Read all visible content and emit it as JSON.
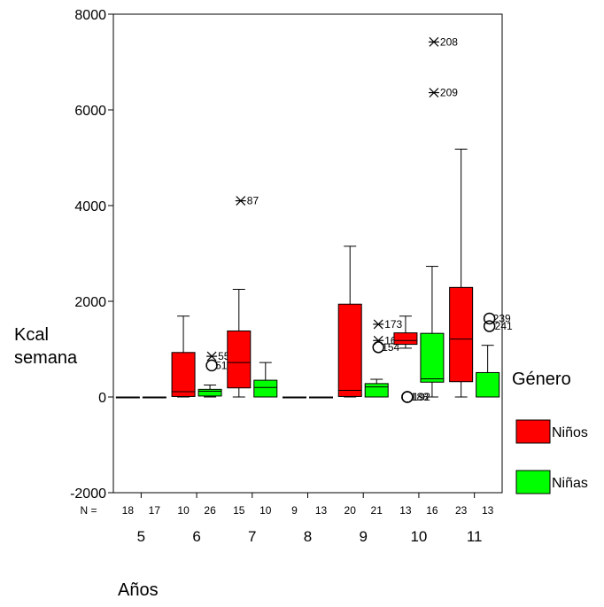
{
  "chart_data": {
    "type": "boxplot",
    "xlabel": "Años",
    "ylabel_lines": [
      "Kcal",
      "semana"
    ],
    "ylim": [
      -2000,
      8000
    ],
    "yticks": [
      -2000,
      0,
      2000,
      4000,
      6000,
      8000
    ],
    "n_prefix": "N =",
    "legend": {
      "title": "Género",
      "placement": "right",
      "entries": [
        {
          "name": "Niños",
          "color": "#ff0000"
        },
        {
          "name": "Niñas",
          "color": "#00ff00"
        }
      ]
    },
    "categories": [
      "5",
      "6",
      "7",
      "8",
      "9",
      "10",
      "11"
    ],
    "groups": [
      {
        "age": "5",
        "boxes": [
          {
            "series": "Niños",
            "n": 18,
            "min": 0,
            "q1": 0,
            "median": 0,
            "q3": 0,
            "max": 0,
            "outliers": [],
            "extremes": []
          },
          {
            "series": "Niñas",
            "n": 17,
            "min": 0,
            "q1": 0,
            "median": 0,
            "q3": 0,
            "max": 0,
            "outliers": [],
            "extremes": []
          }
        ]
      },
      {
        "age": "6",
        "boxes": [
          {
            "series": "Niños",
            "n": 10,
            "min": 0,
            "q1": 10,
            "median": 110,
            "q3": 930,
            "max": 1690,
            "outliers": [],
            "extremes": []
          },
          {
            "series": "Niñas",
            "n": 26,
            "min": 0,
            "q1": 20,
            "median": 120,
            "q3": 160,
            "max": 250,
            "outliers": [
              {
                "label": "51",
                "value": 660
              }
            ],
            "extremes": [
              {
                "label": "55",
                "value": 850
              }
            ]
          }
        ]
      },
      {
        "age": "7",
        "boxes": [
          {
            "series": "Niños",
            "n": 15,
            "min": 0,
            "q1": 190,
            "median": 720,
            "q3": 1380,
            "max": 2250,
            "outliers": [],
            "extremes": [
              {
                "label": "87",
                "value": 4100
              }
            ]
          },
          {
            "series": "Niñas",
            "n": 10,
            "min": 0,
            "q1": 0,
            "median": 200,
            "q3": 350,
            "max": 720,
            "outliers": [],
            "extremes": []
          }
        ]
      },
      {
        "age": "8",
        "boxes": [
          {
            "series": "Niños",
            "n": 9,
            "min": 0,
            "q1": 0,
            "median": 0,
            "q3": 0,
            "max": 0,
            "outliers": [],
            "extremes": []
          },
          {
            "series": "Niñas",
            "n": 13,
            "min": 0,
            "q1": 0,
            "median": 0,
            "q3": 0,
            "max": 0,
            "outliers": [],
            "extremes": []
          }
        ]
      },
      {
        "age": "9",
        "boxes": [
          {
            "series": "Niños",
            "n": 20,
            "min": 0,
            "q1": 10,
            "median": 140,
            "q3": 1940,
            "max": 3150,
            "outliers": [],
            "extremes": []
          },
          {
            "series": "Niñas",
            "n": 21,
            "min": 0,
            "q1": 0,
            "median": 210,
            "q3": 280,
            "max": 370,
            "outliers": [
              {
                "label": "154",
                "value": 1040
              }
            ],
            "extremes": [
              {
                "label": "173",
                "value": 1520
              },
              {
                "label": "167",
                "value": 1180
              }
            ]
          }
        ]
      },
      {
        "age": "10",
        "boxes": [
          {
            "series": "Niños",
            "n": 13,
            "min": 1020,
            "q1": 1100,
            "median": 1180,
            "q3": 1340,
            "max": 1690,
            "outliers": [
              {
                "label": "188",
                "value": 0
              },
              {
                "label": "192",
                "value": 0
              }
            ],
            "extremes": []
          },
          {
            "series": "Niñas",
            "n": 16,
            "min": 0,
            "q1": 310,
            "median": 380,
            "q3": 1330,
            "max": 2730,
            "outliers": [],
            "extremes": [
              {
                "label": "208",
                "value": 7420
              },
              {
                "label": "209",
                "value": 6360
              }
            ]
          }
        ]
      },
      {
        "age": "11",
        "boxes": [
          {
            "series": "Niños",
            "n": 23,
            "min": 0,
            "q1": 320,
            "median": 1210,
            "q3": 2290,
            "max": 5180,
            "outliers": [],
            "extremes": []
          },
          {
            "series": "Niñas",
            "n": 13,
            "min": 0,
            "q1": 0,
            "median": 0,
            "q3": 510,
            "max": 1080,
            "outliers": [
              {
                "label": "239",
                "value": 1640
              },
              {
                "label": "241",
                "value": 1480
              }
            ],
            "extremes": []
          }
        ]
      }
    ]
  }
}
